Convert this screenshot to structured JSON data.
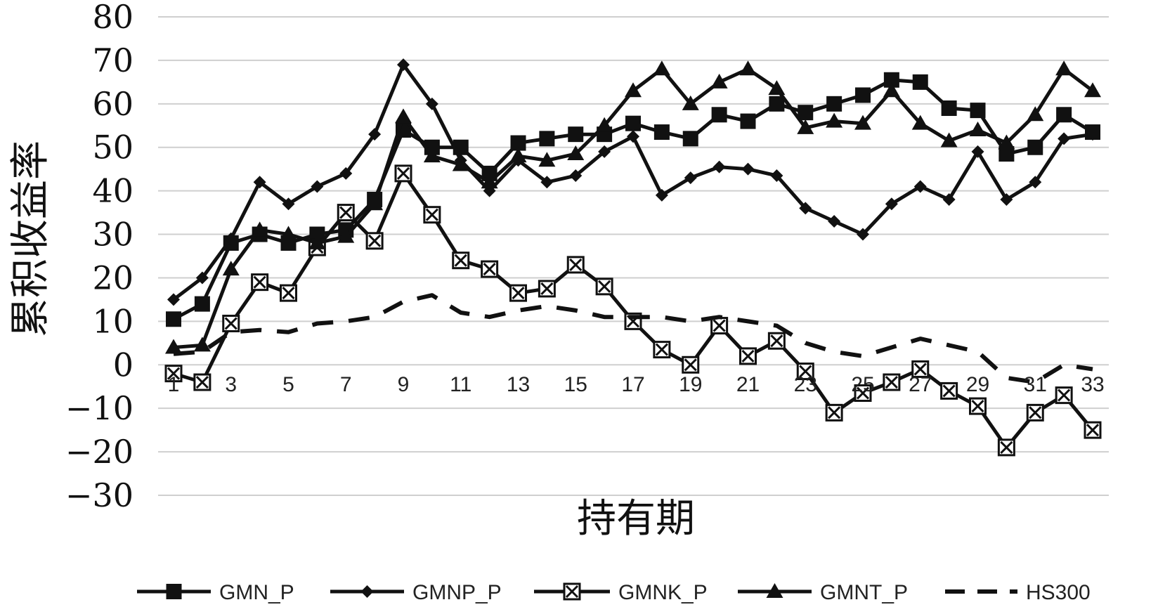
{
  "chart_data": {
    "type": "line",
    "xlabel": "持有期",
    "ylabel": "累积收益率",
    "ylim": [
      -30,
      80
    ],
    "yticks": [
      -30,
      -20,
      -10,
      0,
      10,
      20,
      30,
      40,
      50,
      60,
      70,
      80
    ],
    "ytick_labels": [
      "−30",
      "−20",
      "−10",
      "0",
      "10",
      "20",
      "30",
      "40",
      "50",
      "60",
      "70",
      "80"
    ],
    "x": [
      1,
      2,
      3,
      4,
      5,
      6,
      7,
      8,
      9,
      10,
      11,
      12,
      13,
      14,
      15,
      16,
      17,
      18,
      19,
      20,
      21,
      22,
      23,
      24,
      25,
      26,
      27,
      28,
      29,
      30,
      31,
      32,
      33
    ],
    "xtick_labels": [
      "1",
      "3",
      "5",
      "7",
      "9",
      "11",
      "13",
      "15",
      "17",
      "19",
      "21",
      "23",
      "25",
      "27",
      "29",
      "31",
      "33"
    ],
    "grid": true,
    "legend_position": "bottom",
    "colors": {
      "series": "#111111",
      "grid": "#cfcfcf",
      "marker_fill_open": "#ffffff"
    },
    "series": [
      {
        "name": "GMN_P",
        "marker": "square",
        "line": "solid",
        "values": [
          10.5,
          14,
          28,
          30,
          28,
          30,
          31,
          38,
          54,
          50,
          50,
          44,
          51,
          52,
          53,
          53,
          55.5,
          53.5,
          52,
          57.5,
          56,
          60,
          58,
          60,
          62,
          65.5,
          65,
          59,
          58.5,
          48.5,
          50,
          57.5,
          53.5
        ]
      },
      {
        "name": "GMNP_P",
        "marker": "diamond",
        "line": "solid",
        "values": [
          15,
          20,
          29,
          42,
          37,
          41,
          44,
          53,
          69,
          60,
          47,
          40,
          47,
          42,
          43.5,
          49,
          52.5,
          39,
          43,
          45.5,
          45,
          43.5,
          36,
          33,
          30,
          37,
          41,
          38,
          49,
          38,
          42,
          52,
          53
        ]
      },
      {
        "name": "GMNK_P",
        "marker": "x-square",
        "line": "solid",
        "values": [
          -2,
          -4,
          9.5,
          19,
          16.5,
          27,
          35,
          28.5,
          44,
          34.5,
          24,
          22,
          16.5,
          17.5,
          23,
          18,
          10,
          3.5,
          0,
          9,
          2,
          5.5,
          -1.5,
          -11,
          -6.5,
          -4,
          -1,
          -6,
          -9.5,
          -19,
          -11,
          -7,
          -15
        ]
      },
      {
        "name": "GMNT_P",
        "marker": "triangle",
        "line": "solid",
        "values": [
          4,
          4.5,
          22,
          31,
          30,
          28,
          29.5,
          37,
          57,
          48,
          46,
          42,
          48,
          47,
          48.5,
          55,
          63,
          68,
          60,
          65,
          68,
          63.5,
          54.5,
          56,
          55.5,
          63,
          55.5,
          51.5,
          54,
          51,
          57.5,
          68,
          63
        ]
      },
      {
        "name": "HS300",
        "marker": "none",
        "line": "dashed",
        "values": [
          2.5,
          3,
          7.5,
          8,
          7.5,
          9.5,
          10,
          11,
          14.5,
          16,
          12,
          11,
          12.5,
          13.5,
          12.5,
          11,
          11,
          11,
          10,
          11,
          10,
          9,
          5,
          3,
          2,
          4,
          6,
          4.5,
          3,
          -3,
          -4,
          0,
          -1
        ]
      }
    ]
  }
}
